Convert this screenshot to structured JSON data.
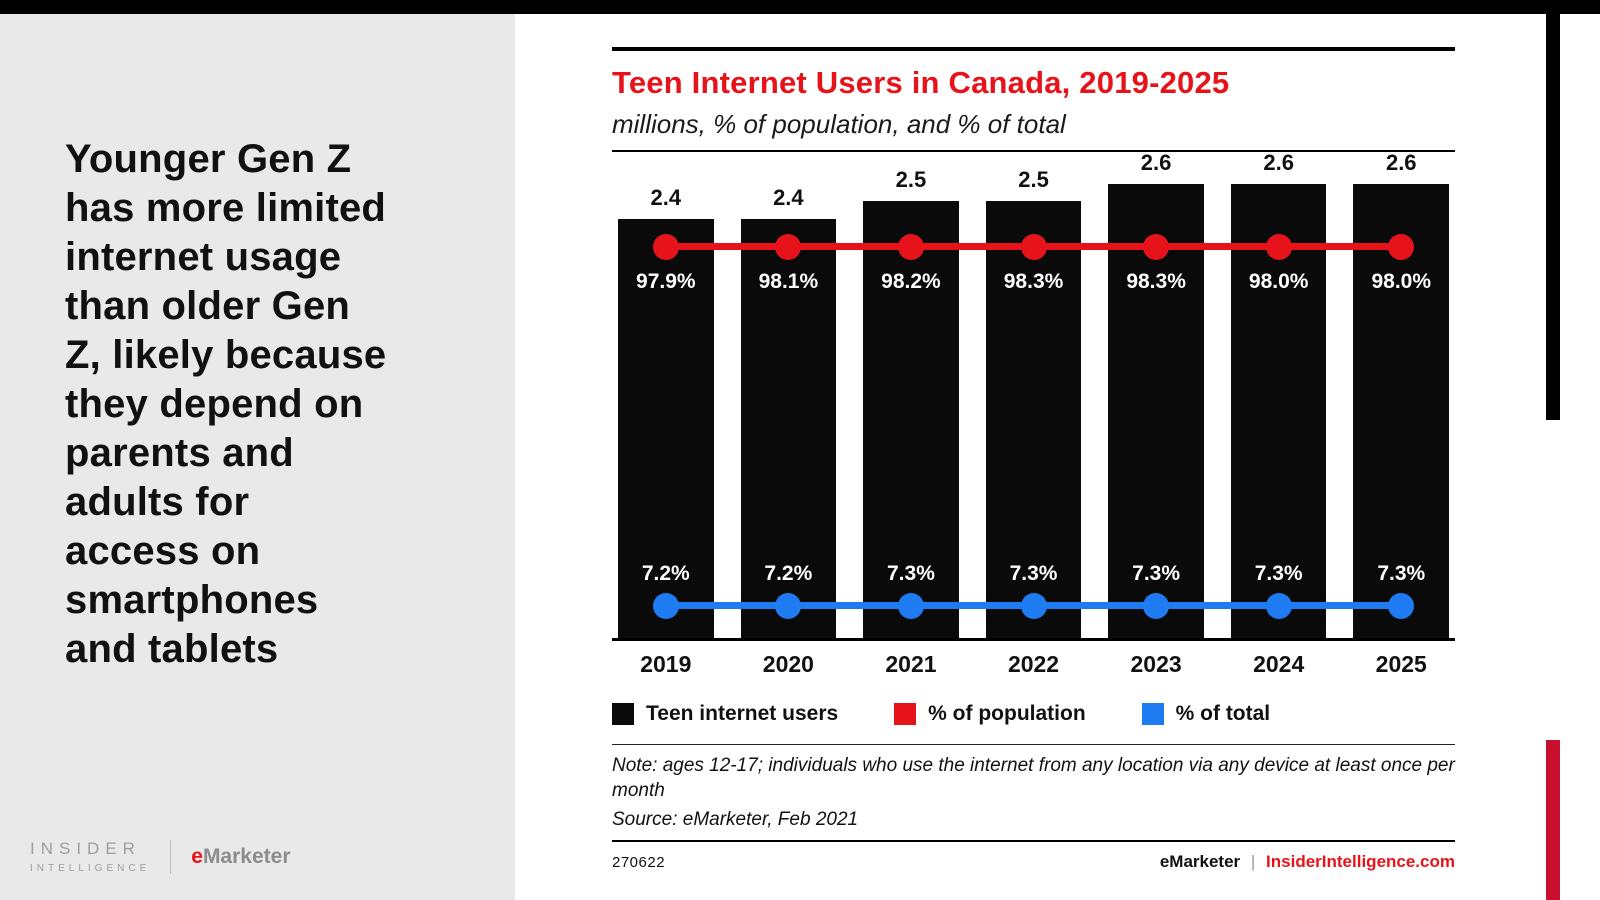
{
  "page": {
    "accent_red": "#e7131a",
    "accent_blue": "#1e7bf2",
    "panel_gray": "#e9e9e9",
    "bar_black": "#0a0a0a"
  },
  "left_panel": {
    "headline": "Younger Gen Z\nhas more limited\ninternet usage\nthan older Gen\nZ, likely because\nthey depend on\nparents and\nadults for\naccess on\nsmartphones\nand tablets",
    "logo": {
      "insider": "INSIDER",
      "intelligence": "INTELLIGENCE",
      "emarketer_e": "e",
      "emarketer_rest": "Marketer"
    }
  },
  "chart": {
    "title": "Teen Internet Users in Canada, 2019-2025",
    "subtitle": "millions, % of population, and % of total",
    "note": "Note: ages 12-17; individuals who use the internet from any location via any device at least once per month",
    "source": "Source: eMarketer, Feb 2021",
    "footer_id": "270622",
    "footer_brand": "eMarketer",
    "footer_divider": "|",
    "footer_site": "InsiderIntelligence.com"
  },
  "chart_data": {
    "type": "bar",
    "title": "Teen Internet Users in Canada, 2019-2025",
    "subtitle": "millions, % of population, and % of total",
    "categories": [
      "2019",
      "2020",
      "2021",
      "2022",
      "2023",
      "2024",
      "2025"
    ],
    "ylim": [
      0,
      2.6
    ],
    "legend_position": "bottom",
    "grid": false,
    "series": [
      {
        "name": "Teen internet users",
        "type": "bar",
        "unit": "millions",
        "color": "#0a0a0a",
        "values": [
          2.4,
          2.4,
          2.5,
          2.5,
          2.6,
          2.6,
          2.6
        ],
        "labels": [
          "2.4",
          "2.4",
          "2.5",
          "2.5",
          "2.6",
          "2.6",
          "2.6"
        ]
      },
      {
        "name": "% of population",
        "type": "line",
        "unit": "%",
        "color": "#e7131a",
        "values": [
          97.9,
          98.1,
          98.2,
          98.3,
          98.3,
          98.0,
          98.0
        ],
        "labels": [
          "97.9%",
          "98.1%",
          "98.2%",
          "98.3%",
          "98.3%",
          "98.0%",
          "98.0%"
        ]
      },
      {
        "name": "% of total",
        "type": "line",
        "unit": "%",
        "color": "#1e7bf2",
        "values": [
          7.2,
          7.2,
          7.3,
          7.3,
          7.3,
          7.3,
          7.3
        ],
        "labels": [
          "7.2%",
          "7.2%",
          "7.3%",
          "7.3%",
          "7.3%",
          "7.3%",
          "7.3%"
        ]
      }
    ]
  }
}
